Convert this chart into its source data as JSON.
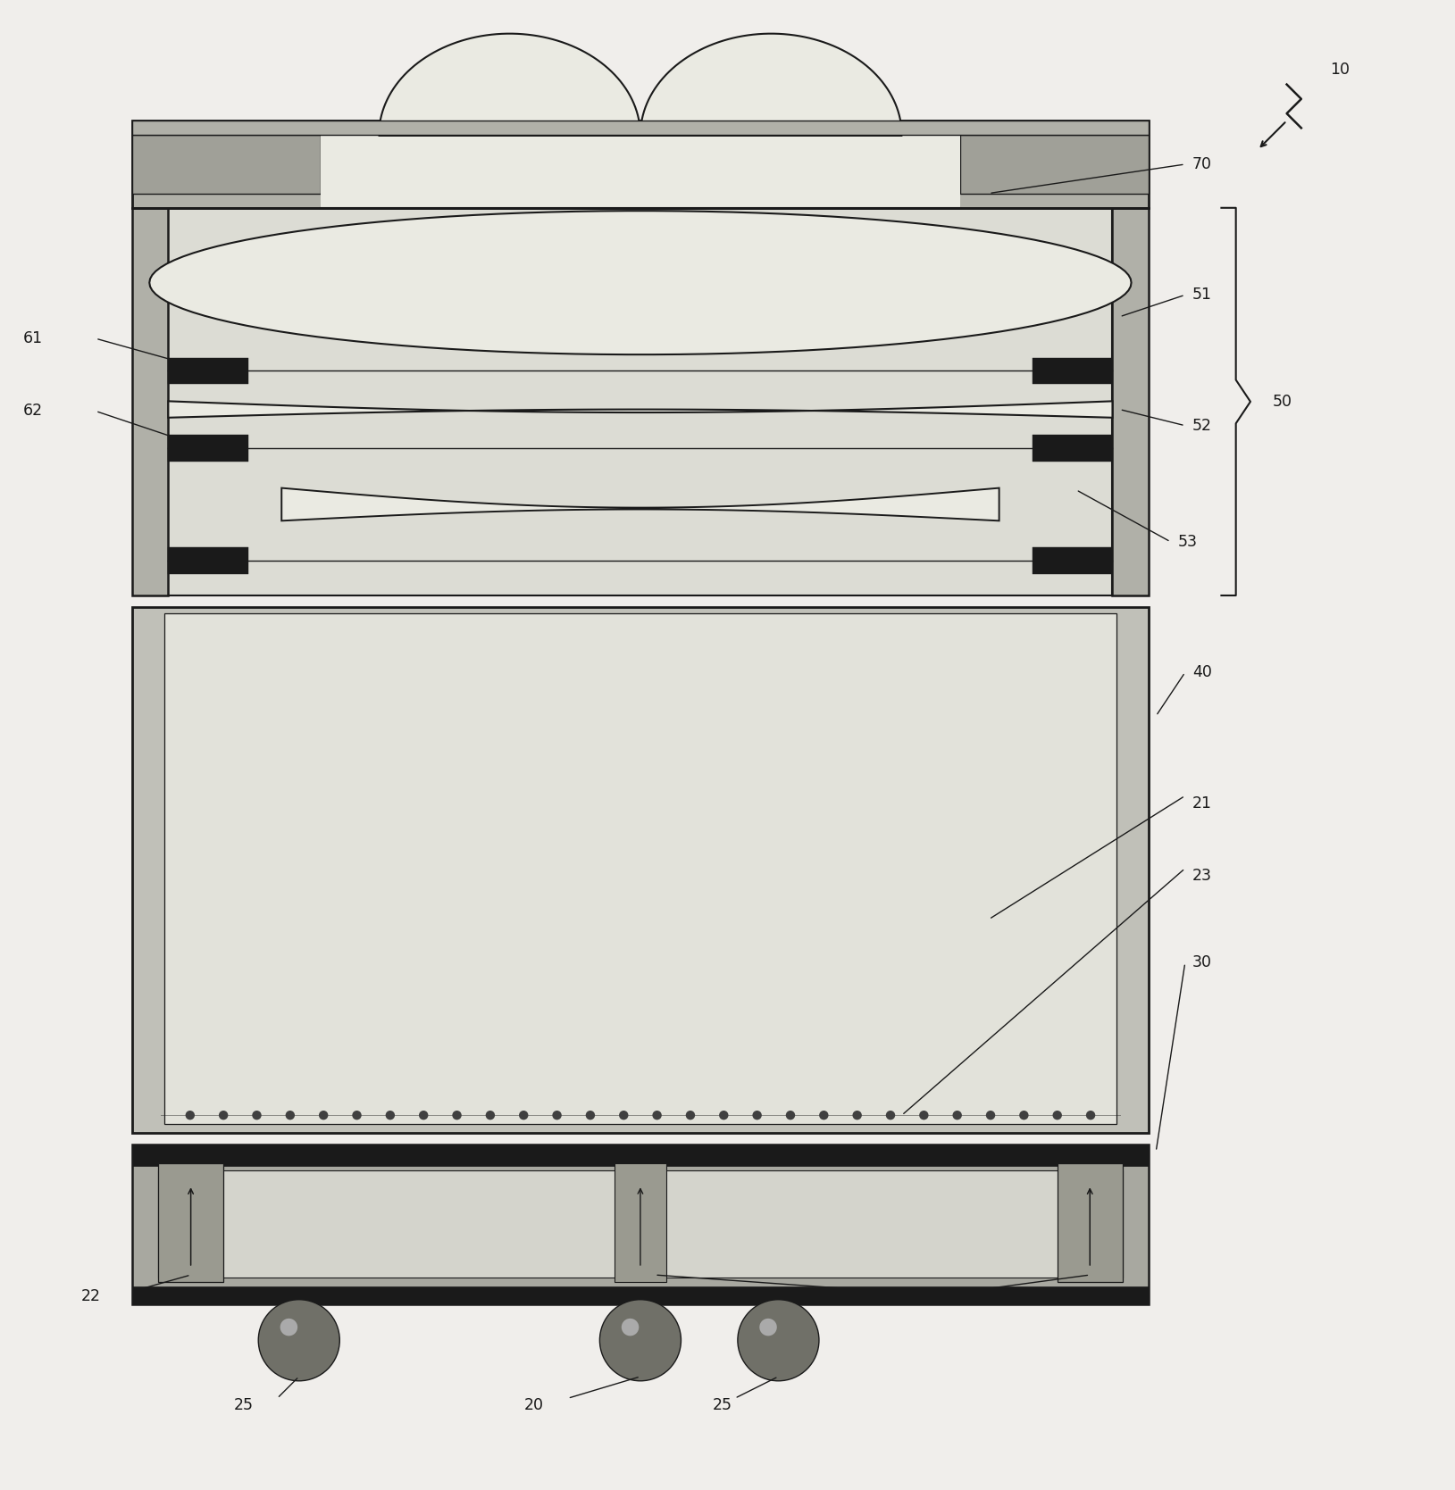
{
  "bg_color": "#f0eeeb",
  "blk": "#1a1a1a",
  "dark_gray": "#5a5a5a",
  "med_gray": "#8c8c8c",
  "light_gray": "#c8c8c0",
  "lighter_gray": "#dcdcd4",
  "very_light": "#eaeae2",
  "frame_gray": "#b0b0a8",
  "cap_gray": "#a0a098",
  "wafer_fill": "#d8d8d0",
  "pcb_outer": "#a8a8a0",
  "pcb_inner": "#d4d4cc",
  "spacer_fill": "#c0c0b8",
  "figure_width": 16.29,
  "figure_height": 16.69
}
